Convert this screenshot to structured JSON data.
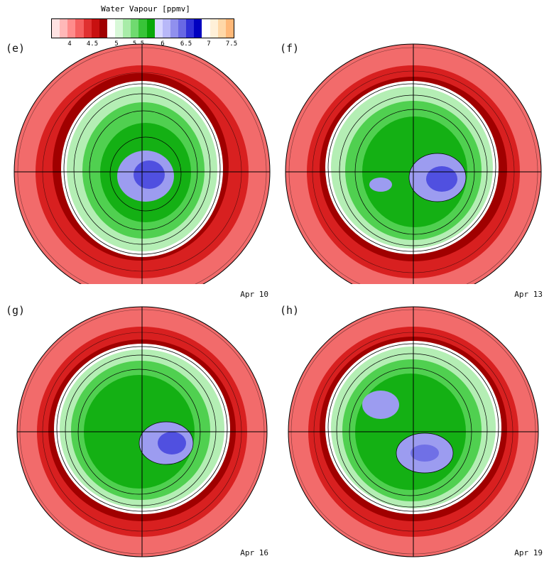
{
  "colorbar": {
    "title": "Water Vapour [ppmv]",
    "tick_labels": [
      "4",
      "4.5",
      "5",
      "5.5",
      "6",
      "6.5",
      "7",
      "7.5"
    ],
    "colors": [
      "#ffe2e2",
      "#ffb8b8",
      "#ff8c8c",
      "#f56060",
      "#e03030",
      "#c81010",
      "#a00000",
      "#ffffff",
      "#d8f8d8",
      "#a8eca8",
      "#70da70",
      "#38c438",
      "#08a808",
      "#d8d8ff",
      "#b8b8f8",
      "#9090ee",
      "#6868e4",
      "#3030d8",
      "#0000c0",
      "#ffffff",
      "#fff0d8",
      "#ffd8a8",
      "#ffb878"
    ]
  },
  "panels": [
    {
      "label": "(e)",
      "date": "Apr 10"
    },
    {
      "label": "(f)",
      "date": "Apr 13"
    },
    {
      "label": "(g)",
      "date": "Apr 16"
    },
    {
      "label": "(h)",
      "date": "Apr 19"
    }
  ]
}
